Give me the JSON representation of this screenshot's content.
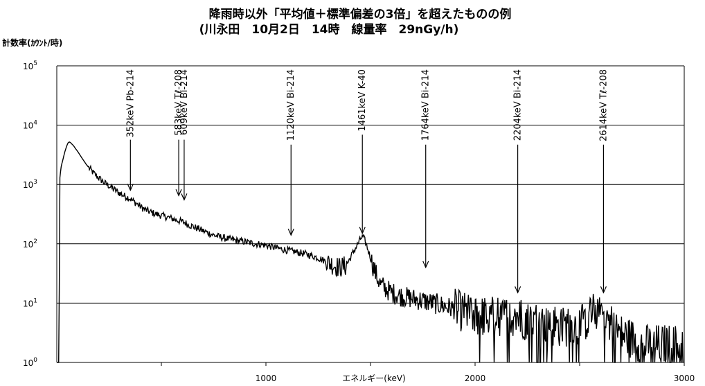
{
  "chart_data": {
    "type": "line",
    "title": "降雨時以外「平均値＋標準偏差の3倍」を超えたものの例",
    "subtitle": "(川永田　10月2日　14時　線量率　29nGy/h)",
    "ylabel": "計数率(ｶｳﾝﾄ/時)",
    "xlabel": "エネルギー(keV)",
    "xlim": [
      0,
      3000
    ],
    "ylim": [
      1,
      100000
    ],
    "yscale": "log",
    "x_ticks": [
      "1000",
      "2000",
      "3000"
    ],
    "x_tick_values": [
      1000,
      2000,
      3000
    ],
    "y_ticks": [
      {
        "base": "10",
        "exp": "0",
        "value": 1
      },
      {
        "base": "10",
        "exp": "1",
        "value": 10
      },
      {
        "base": "10",
        "exp": "2",
        "value": 100
      },
      {
        "base": "10",
        "exp": "3",
        "value": 1000
      },
      {
        "base": "10",
        "exp": "4",
        "value": 10000
      },
      {
        "base": "10",
        "exp": "5",
        "value": 100000
      }
    ],
    "grid": "horizontal",
    "series": [
      {
        "points": [
          [
            0,
            1
          ],
          [
            5,
            1
          ],
          [
            10,
            1
          ],
          [
            15,
            1300
          ],
          [
            20,
            1900
          ],
          [
            25,
            2300
          ],
          [
            30,
            2700
          ],
          [
            35,
            3200
          ],
          [
            40,
            3700
          ],
          [
            45,
            4200
          ],
          [
            50,
            4700
          ],
          [
            55,
            5100
          ],
          [
            60,
            5200
          ],
          [
            65,
            5100
          ],
          [
            70,
            4900
          ],
          [
            80,
            4500
          ],
          [
            90,
            4000
          ],
          [
            100,
            3600
          ],
          [
            120,
            2800
          ],
          [
            140,
            2200
          ],
          [
            160,
            1800
          ],
          [
            180,
            1500
          ],
          [
            200,
            1300
          ],
          [
            230,
            1050
          ],
          [
            260,
            900
          ],
          [
            290,
            750
          ],
          [
            320,
            650
          ],
          [
            350,
            580
          ],
          [
            380,
            480
          ],
          [
            410,
            400
          ],
          [
            440,
            350
          ],
          [
            470,
            320
          ],
          [
            500,
            300
          ],
          [
            530,
            280
          ],
          [
            560,
            260
          ],
          [
            590,
            240
          ],
          [
            610,
            230
          ],
          [
            630,
            210
          ],
          [
            660,
            190
          ],
          [
            700,
            165
          ],
          [
            750,
            140
          ],
          [
            800,
            125
          ],
          [
            850,
            115
          ],
          [
            900,
            108
          ],
          [
            950,
            100
          ],
          [
            1000,
            95
          ],
          [
            1050,
            85
          ],
          [
            1100,
            78
          ],
          [
            1150,
            72
          ],
          [
            1200,
            66
          ],
          [
            1250,
            58
          ],
          [
            1300,
            48
          ],
          [
            1350,
            40
          ],
          [
            1380,
            42
          ],
          [
            1400,
            55
          ],
          [
            1420,
            75
          ],
          [
            1440,
            100
          ],
          [
            1455,
            125
          ],
          [
            1465,
            130
          ],
          [
            1475,
            110
          ],
          [
            1490,
            75
          ],
          [
            1510,
            45
          ],
          [
            1530,
            28
          ],
          [
            1550,
            20
          ],
          [
            1600,
            15
          ],
          [
            1650,
            13
          ],
          [
            1700,
            12
          ],
          [
            1750,
            11
          ],
          [
            1800,
            10
          ],
          [
            1850,
            9
          ],
          [
            1900,
            8
          ],
          [
            1950,
            7
          ],
          [
            2000,
            6
          ],
          [
            2050,
            6
          ],
          [
            2100,
            6
          ],
          [
            2150,
            6
          ],
          [
            2200,
            6
          ],
          [
            2250,
            5
          ],
          [
            2300,
            5
          ],
          [
            2350,
            4
          ],
          [
            2400,
            4
          ],
          [
            2450,
            4
          ],
          [
            2500,
            4
          ],
          [
            2550,
            6
          ],
          [
            2600,
            9
          ],
          [
            2640,
            5
          ],
          [
            2700,
            3
          ],
          [
            2750,
            2.5
          ],
          [
            2800,
            2
          ],
          [
            2850,
            2
          ],
          [
            2900,
            2
          ],
          [
            2950,
            2
          ],
          [
            2995,
            2
          ]
        ]
      }
    ],
    "annotations": [
      {
        "label": "352keV Pb-214",
        "x": 352,
        "y": 800
      },
      {
        "label": "583keV Tℓ-208",
        "x": 583,
        "y": 650
      },
      {
        "label": "609keV Bi-214",
        "x": 609,
        "y": 550
      },
      {
        "label": "1120keV Bi-214",
        "x": 1120,
        "y": 140
      },
      {
        "label": "1461keV K-40",
        "x": 1461,
        "y": 150
      },
      {
        "label": "1764keV Bi-214",
        "x": 1764,
        "y": 40
      },
      {
        "label": "2204keV Bi-214",
        "x": 2204,
        "y": 15
      },
      {
        "label": "2614keV Tℓ-208",
        "x": 2614,
        "y": 15
      }
    ]
  }
}
